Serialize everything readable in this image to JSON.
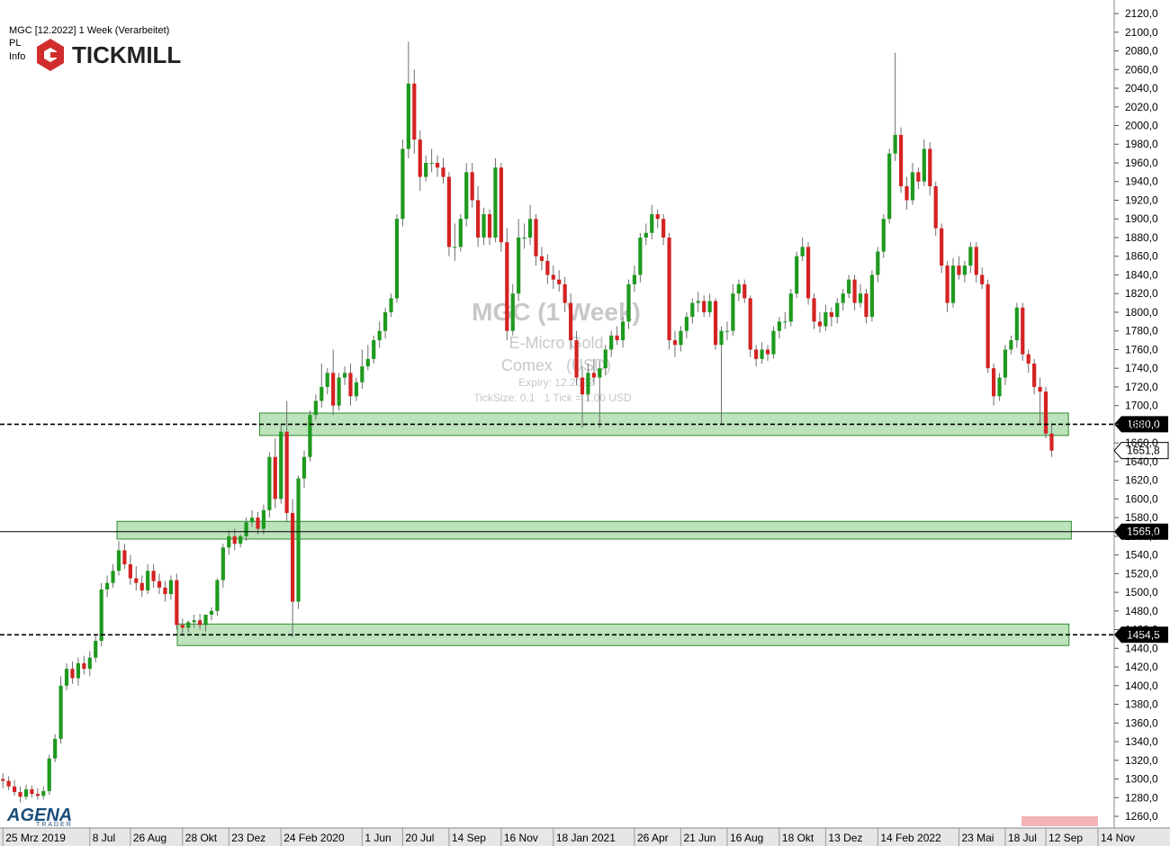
{
  "header": {
    "instrument": "MGC [12.2022] 1 Week (Verarbeitet)",
    "pl": "PL",
    "info": "Info",
    "broker": "TICKMILL"
  },
  "footer": {
    "brand": "AGENA",
    "brand_sub": "TRADER"
  },
  "chart_data": {
    "type": "candlestick",
    "watermark": {
      "title": "MGC (1 Week)",
      "name": "E-Micro Gold",
      "exchange": "Comex   (USD)",
      "expiry": "Expiry: 12.2022",
      "ticksize": "TickSize: 0,1   1 Tick = 1,00 USD"
    },
    "up_color": "#1e9a1e",
    "down_color": "#d42222",
    "wick_color": "#6f6f6f",
    "zone_color": "#8fd18f",
    "open": [
      1300,
      1298,
      1292,
      1286,
      1281,
      1289,
      1284,
      1282,
      1287,
      1322,
      1343,
      1400,
      1418,
      1408,
      1424,
      1418,
      1430,
      1448,
      1503,
      1510,
      1523,
      1545,
      1530,
      1515,
      1510,
      1502,
      1523,
      1512,
      1505,
      1498,
      1513,
      1465,
      1462,
      1468,
      1470,
      1465,
      1476,
      1480,
      1513,
      1548,
      1560,
      1552,
      1560,
      1575,
      1580,
      1568,
      1588,
      1645,
      1600,
      1672,
      1585,
      1490,
      1622,
      1645,
      1690,
      1705,
      1720,
      1735,
      1700,
      1730,
      1735,
      1710,
      1725,
      1742,
      1750,
      1770,
      1780,
      1800,
      1815,
      1900,
      1975,
      2045,
      1985,
      1945,
      1960,
      1960,
      1955,
      1945,
      1870,
      1870,
      1900,
      1950,
      1920,
      1880,
      1905,
      1880,
      1955,
      1875,
      1780,
      1820,
      1880,
      1880,
      1900,
      1860,
      1855,
      1840,
      1835,
      1830,
      1810,
      1770,
      1730,
      1712,
      1735,
      1730,
      1740,
      1760,
      1775,
      1770,
      1790,
      1830,
      1840,
      1880,
      1885,
      1905,
      1900,
      1880,
      1770,
      1765,
      1780,
      1795,
      1810,
      1812,
      1800,
      1812,
      1765,
      1780,
      1780,
      1820,
      1830,
      1815,
      1760,
      1750,
      1760,
      1755,
      1780,
      1790,
      1790,
      1820,
      1860,
      1870,
      1815,
      1790,
      1785,
      1800,
      1795,
      1810,
      1820,
      1835,
      1810,
      1820,
      1795,
      1840,
      1865,
      1900,
      1970,
      1990,
      1935,
      1920,
      1950,
      1940,
      1975,
      1935,
      1890,
      1850,
      1810,
      1850,
      1840,
      1850,
      1870,
      1840,
      1830,
      1740,
      1710,
      1730,
      1760,
      1770,
      1805,
      1755,
      1745,
      1720,
      1715,
      1670
    ],
    "high": [
      1306,
      1303,
      1299,
      1292,
      1294,
      1293,
      1290,
      1292,
      1326,
      1348,
      1410,
      1424,
      1426,
      1430,
      1432,
      1437,
      1455,
      1510,
      1518,
      1530,
      1555,
      1552,
      1540,
      1528,
      1518,
      1530,
      1530,
      1520,
      1512,
      1518,
      1520,
      1472,
      1470,
      1476,
      1477,
      1474,
      1484,
      1515,
      1552,
      1566,
      1568,
      1562,
      1580,
      1588,
      1586,
      1594,
      1650,
      1665,
      1680,
      1705,
      1600,
      1625,
      1652,
      1695,
      1712,
      1745,
      1740,
      1760,
      1735,
      1742,
      1745,
      1730,
      1760,
      1765,
      1775,
      1790,
      1805,
      1820,
      1905,
      1985,
      2090,
      2060,
      1995,
      1968,
      1975,
      1968,
      1965,
      1950,
      1895,
      1905,
      1960,
      1960,
      1935,
      1912,
      1910,
      1965,
      1960,
      1890,
      1830,
      1900,
      1895,
      1915,
      1905,
      1870,
      1862,
      1850,
      1845,
      1838,
      1820,
      1780,
      1742,
      1745,
      1750,
      1748,
      1765,
      1780,
      1785,
      1795,
      1835,
      1850,
      1885,
      1895,
      1915,
      1910,
      1905,
      1885,
      1780,
      1785,
      1800,
      1815,
      1822,
      1818,
      1820,
      1815,
      1785,
      1790,
      1830,
      1835,
      1835,
      1818,
      1765,
      1768,
      1765,
      1785,
      1795,
      1800,
      1825,
      1865,
      1880,
      1875,
      1820,
      1800,
      1808,
      1805,
      1815,
      1825,
      1840,
      1840,
      1830,
      1825,
      1845,
      1870,
      1905,
      1975,
      2078,
      1998,
      1945,
      1960,
      1955,
      1985,
      1982,
      1940,
      1895,
      1855,
      1858,
      1860,
      1855,
      1875,
      1875,
      1848,
      1835,
      1745,
      1735,
      1765,
      1775,
      1810,
      1810,
      1760,
      1750,
      1730,
      1720,
      1680
    ],
    "low": [
      1290,
      1288,
      1282,
      1275,
      1278,
      1280,
      1278,
      1278,
      1283,
      1318,
      1338,
      1395,
      1402,
      1400,
      1412,
      1410,
      1425,
      1442,
      1495,
      1505,
      1518,
      1525,
      1508,
      1502,
      1495,
      1498,
      1505,
      1498,
      1490,
      1492,
      1460,
      1455,
      1457,
      1462,
      1460,
      1458,
      1470,
      1475,
      1505,
      1540,
      1545,
      1548,
      1555,
      1570,
      1562,
      1562,
      1580,
      1590,
      1595,
      1575,
      1452,
      1482,
      1612,
      1640,
      1685,
      1698,
      1712,
      1690,
      1695,
      1722,
      1700,
      1705,
      1718,
      1738,
      1745,
      1762,
      1772,
      1795,
      1810,
      1892,
      1965,
      1970,
      1930,
      1940,
      1950,
      1945,
      1938,
      1860,
      1855,
      1865,
      1892,
      1912,
      1870,
      1872,
      1872,
      1875,
      1865,
      1770,
      1775,
      1812,
      1868,
      1872,
      1850,
      1845,
      1830,
      1825,
      1822,
      1800,
      1760,
      1722,
      1676,
      1705,
      1722,
      1676,
      1732,
      1752,
      1765,
      1762,
      1782,
      1822,
      1832,
      1872,
      1878,
      1890,
      1872,
      1760,
      1752,
      1758,
      1772,
      1788,
      1800,
      1795,
      1795,
      1760,
      1680,
      1770,
      1775,
      1812,
      1810,
      1752,
      1742,
      1745,
      1748,
      1750,
      1772,
      1782,
      1785,
      1815,
      1855,
      1808,
      1782,
      1778,
      1780,
      1785,
      1788,
      1802,
      1815,
      1802,
      1805,
      1788,
      1790,
      1832,
      1858,
      1895,
      1962,
      1928,
      1910,
      1915,
      1932,
      1935,
      1925,
      1882,
      1842,
      1800,
      1805,
      1835,
      1832,
      1842,
      1832,
      1825,
      1735,
      1700,
      1705,
      1722,
      1755,
      1762,
      1748,
      1735,
      1712,
      1680,
      1665,
      1645
    ],
    "close": [
      1298,
      1292,
      1286,
      1281,
      1289,
      1284,
      1282,
      1287,
      1322,
      1343,
      1400,
      1418,
      1408,
      1424,
      1418,
      1430,
      1448,
      1503,
      1510,
      1523,
      1545,
      1530,
      1515,
      1510,
      1502,
      1523,
      1512,
      1505,
      1498,
      1513,
      1465,
      1462,
      1468,
      1470,
      1465,
      1476,
      1480,
      1513,
      1548,
      1560,
      1552,
      1560,
      1575,
      1580,
      1568,
      1588,
      1645,
      1600,
      1672,
      1585,
      1490,
      1622,
      1645,
      1690,
      1705,
      1720,
      1735,
      1700,
      1730,
      1735,
      1710,
      1725,
      1742,
      1750,
      1770,
      1780,
      1800,
      1815,
      1900,
      1975,
      2045,
      1985,
      1945,
      1960,
      1960,
      1955,
      1945,
      1870,
      1870,
      1900,
      1950,
      1920,
      1880,
      1905,
      1880,
      1955,
      1875,
      1780,
      1820,
      1880,
      1880,
      1900,
      1860,
      1855,
      1840,
      1835,
      1830,
      1810,
      1770,
      1730,
      1712,
      1735,
      1730,
      1740,
      1760,
      1775,
      1770,
      1790,
      1830,
      1840,
      1880,
      1885,
      1905,
      1900,
      1880,
      1770,
      1765,
      1780,
      1795,
      1810,
      1812,
      1800,
      1812,
      1765,
      1780,
      1780,
      1820,
      1830,
      1815,
      1760,
      1750,
      1760,
      1755,
      1780,
      1790,
      1790,
      1820,
      1860,
      1870,
      1815,
      1790,
      1785,
      1800,
      1795,
      1810,
      1820,
      1835,
      1810,
      1820,
      1795,
      1840,
      1865,
      1900,
      1970,
      1990,
      1935,
      1920,
      1950,
      1940,
      1975,
      1935,
      1890,
      1850,
      1810,
      1850,
      1840,
      1850,
      1870,
      1840,
      1830,
      1740,
      1710,
      1730,
      1760,
      1770,
      1805,
      1755,
      1745,
      1720,
      1715,
      1670,
      1651.8
    ],
    "xlim": [
      -0.5,
      191.8
    ],
    "xticks": [
      {
        "value": 0,
        "label": "25 Mrz 2019"
      },
      {
        "value": 15,
        "label": "8 Jul"
      },
      {
        "value": 22,
        "label": "26 Aug"
      },
      {
        "value": 31,
        "label": "28 Okt"
      },
      {
        "value": 39,
        "label": "23 Dez"
      },
      {
        "value": 48,
        "label": "24 Feb 2020"
      },
      {
        "value": 62,
        "label": "1 Jun"
      },
      {
        "value": 69,
        "label": "20 Jul"
      },
      {
        "value": 77,
        "label": "14 Sep"
      },
      {
        "value": 86,
        "label": "16 Nov"
      },
      {
        "value": 95,
        "label": "18 Jan 2021"
      },
      {
        "value": 109,
        "label": "26 Apr"
      },
      {
        "value": 117,
        "label": "21 Jun"
      },
      {
        "value": 125,
        "label": "16 Aug"
      },
      {
        "value": 134,
        "label": "18 Okt"
      },
      {
        "value": 142,
        "label": "13 Dez"
      },
      {
        "value": 151,
        "label": "14 Feb 2022"
      },
      {
        "value": 165,
        "label": "23 Mai"
      },
      {
        "value": 173,
        "label": "18 Jul"
      },
      {
        "value": 180,
        "label": "12 Sep"
      },
      {
        "value": 189,
        "label": "14 Nov"
      }
    ],
    "ylim": [
      1247.5,
      2134.5
    ],
    "yticks": [
      {
        "value": 1260,
        "label": "1260,0"
      },
      {
        "value": 1280,
        "label": "1280,0"
      },
      {
        "value": 1300,
        "label": "1300,0"
      },
      {
        "value": 1320,
        "label": "1320,0"
      },
      {
        "value": 1340,
        "label": "1340,0"
      },
      {
        "value": 1360,
        "label": "1360,0"
      },
      {
        "value": 1380,
        "label": "1380,0"
      },
      {
        "value": 1400,
        "label": "1400,0"
      },
      {
        "value": 1420,
        "label": "1420,0"
      },
      {
        "value": 1440,
        "label": "1440,0"
      },
      {
        "value": 1460,
        "label": "1460,0"
      },
      {
        "value": 1480,
        "label": "1480,0"
      },
      {
        "value": 1500,
        "label": "1500,0"
      },
      {
        "value": 1520,
        "label": "1520,0"
      },
      {
        "value": 1540,
        "label": "1540,0"
      },
      {
        "value": 1560,
        "label": "1560,0"
      },
      {
        "value": 1580,
        "label": "1580,0"
      },
      {
        "value": 1600,
        "label": "1600,0"
      },
      {
        "value": 1620,
        "label": "1620,0"
      },
      {
        "value": 1640,
        "label": "1640,0"
      },
      {
        "value": 1660,
        "label": "1660,0"
      },
      {
        "value": 1680,
        "label": "1680,0"
      },
      {
        "value": 1700,
        "label": "1700,0"
      },
      {
        "value": 1720,
        "label": "1720,0"
      },
      {
        "value": 1740,
        "label": "1740,0"
      },
      {
        "value": 1760,
        "label": "1760,0"
      },
      {
        "value": 1780,
        "label": "1780,0"
      },
      {
        "value": 1800,
        "label": "1800,0"
      },
      {
        "value": 1820,
        "label": "1820,0"
      },
      {
        "value": 1840,
        "label": "1840,0"
      },
      {
        "value": 1860,
        "label": "1860,0"
      },
      {
        "value": 1880,
        "label": "1880,0"
      },
      {
        "value": 1900,
        "label": "1900,0"
      },
      {
        "value": 1920,
        "label": "1920,0"
      },
      {
        "value": 1940,
        "label": "1940,0"
      },
      {
        "value": 1960,
        "label": "1960,0"
      },
      {
        "value": 1980,
        "label": "1980,0"
      },
      {
        "value": 2000,
        "label": "2000,0"
      },
      {
        "value": 2020,
        "label": "2020,0"
      },
      {
        "value": 2040,
        "label": "2040,0"
      },
      {
        "value": 2060,
        "label": "2060,0"
      },
      {
        "value": 2080,
        "label": "2080,0"
      },
      {
        "value": 2100,
        "label": "2100,0"
      },
      {
        "value": 2120,
        "label": "2120,0"
      }
    ],
    "zones": [
      {
        "low": 1668,
        "high": 1692,
        "from": 44.3,
        "to": 183.9
      },
      {
        "low": 1557,
        "high": 1576,
        "from": 19.7,
        "to": 184.4
      },
      {
        "low": 1443,
        "high": 1466,
        "from": 30.1,
        "to": 184
      }
    ],
    "levels": [
      {
        "value": 1680,
        "label": "1680,0",
        "style": "dashed"
      },
      {
        "value": 1565,
        "label": "1565,0",
        "style": "solid"
      },
      {
        "value": 1454.5,
        "label": "1454,5",
        "style": "dashed"
      }
    ],
    "last_price": {
      "value": 1651.8,
      "label": "1651,8"
    }
  }
}
